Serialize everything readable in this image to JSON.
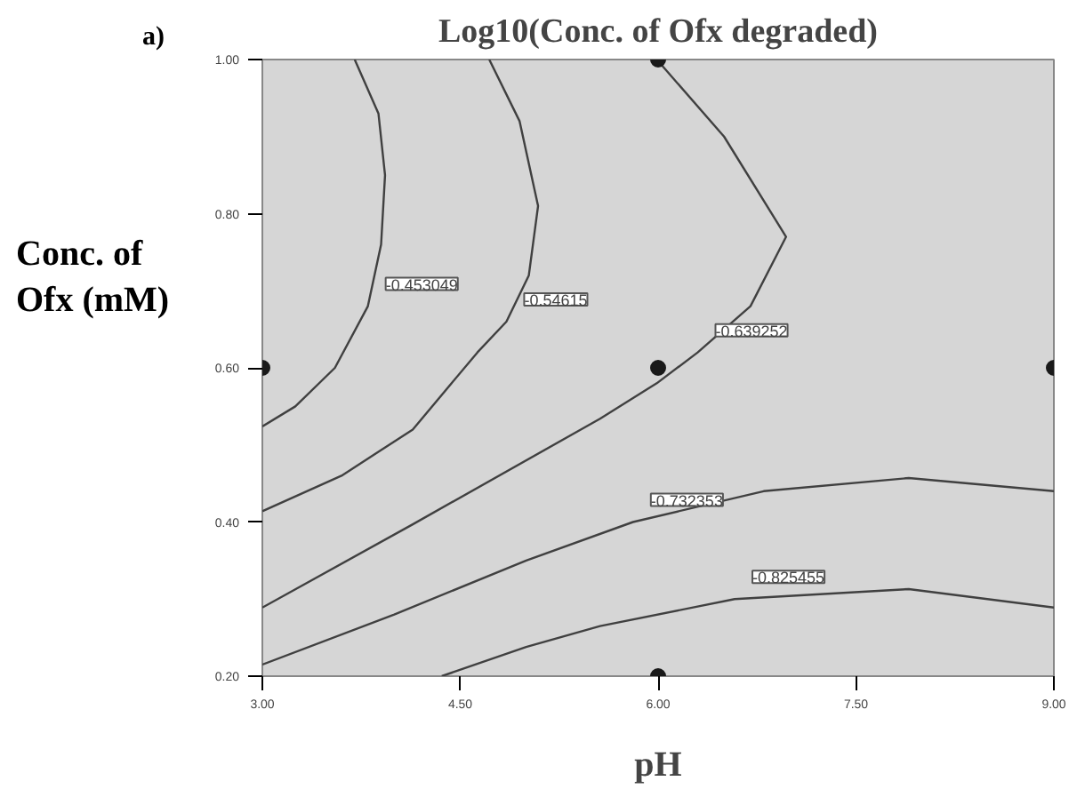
{
  "chart_data": {
    "type": "line",
    "title": "Log10(Conc. of Ofx degraded)",
    "xlabel": "pH",
    "ylabel": "Conc. of Ofx (mM)",
    "xlim": [
      3,
      9
    ],
    "ylim": [
      0.2,
      1.0
    ],
    "xticks": [
      {
        "value": 3,
        "label": "3.00"
      },
      {
        "value": 4.5,
        "label": "4.50"
      },
      {
        "value": 6,
        "label": "6.00"
      },
      {
        "value": 7.5,
        "label": "7.50"
      },
      {
        "value": 9,
        "label": "9.00"
      }
    ],
    "yticks": [
      {
        "value": 0.2,
        "label": "0.20"
      },
      {
        "value": 0.4,
        "label": "0.40"
      },
      {
        "value": 0.6,
        "label": "0.60"
      },
      {
        "value": 0.8,
        "label": "0.80"
      },
      {
        "value": 1.0,
        "label": "1.00"
      }
    ],
    "grid": false,
    "series": [
      {
        "name": "-0.453049",
        "color": "#404040",
        "x": [
          3.7,
          3.88,
          3.93,
          3.9,
          3.8,
          3.55,
          3.25,
          3.0
        ],
        "values": [
          1.0,
          0.93,
          0.85,
          0.76,
          0.68,
          0.6,
          0.55,
          0.524
        ]
      },
      {
        "name": "-0.54615",
        "color": "#404040",
        "x": [
          4.72,
          4.95,
          5.09,
          5.02,
          4.85,
          4.63,
          4.14,
          3.6,
          3.0
        ],
        "values": [
          1.0,
          0.92,
          0.81,
          0.72,
          0.66,
          0.62,
          0.52,
          0.46,
          0.414
        ]
      },
      {
        "name": "-0.639252",
        "color": "#404040",
        "x": [
          5.99,
          6.5,
          6.97,
          6.7,
          6.3,
          5.99,
          5.56,
          4.14,
          3.0
        ],
        "values": [
          1.0,
          0.9,
          0.77,
          0.68,
          0.62,
          0.58,
          0.534,
          0.397,
          0.289
        ]
      },
      {
        "name": "-0.732353",
        "color": "#404040",
        "x": [
          3.0,
          4.0,
          5.0,
          5.81,
          6.8,
          7.9,
          9.0
        ],
        "values": [
          0.215,
          0.28,
          0.35,
          0.4,
          0.44,
          0.457,
          0.44
        ]
      },
      {
        "name": "-0.825455",
        "color": "#404040",
        "x": [
          4.36,
          5.0,
          5.56,
          6.58,
          7.9,
          9.0
        ],
        "values": [
          0.2,
          0.238,
          0.265,
          0.3,
          0.313,
          0.289
        ]
      },
      {
        "type": "scatter",
        "marker": "circle",
        "color": "#1a1a1a",
        "x": [
          3,
          6,
          6,
          9,
          6
        ],
        "values": [
          0.6,
          1.0,
          0.6,
          0.6,
          0.2
        ]
      }
    ],
    "annotations": [
      "a)"
    ]
  }
}
